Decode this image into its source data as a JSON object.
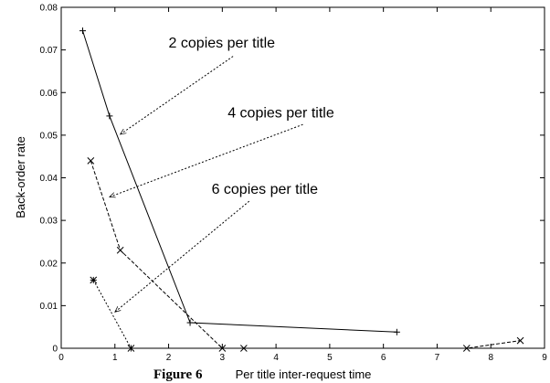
{
  "chart_data": {
    "type": "line",
    "title": "",
    "xlabel": "Per title inter-request time",
    "ylabel": "Back-order rate",
    "xlim": [
      0,
      9
    ],
    "ylim": [
      0,
      0.08
    ],
    "xticks": [
      "0",
      "1",
      "2",
      "3",
      "4",
      "5",
      "6",
      "7",
      "8",
      "9"
    ],
    "yticks": [
      "0",
      "0.01",
      "0.02",
      "0.03",
      "0.04",
      "0.05",
      "0.06",
      "0.07",
      "0.08"
    ],
    "grid": false,
    "legend": "none",
    "series": [
      {
        "marker": "plus",
        "line_style": "solid",
        "points": [
          [
            0.4,
            0.0745
          ],
          [
            0.9,
            0.0545
          ],
          [
            2.4,
            0.006
          ],
          [
            6.25,
            0.0038
          ]
        ]
      },
      {
        "marker": "cross",
        "line_style": "dashed",
        "points": [
          [
            0.55,
            0.044
          ],
          [
            1.1,
            0.023
          ],
          [
            3.0,
            0.0
          ],
          [
            3.4,
            0.0
          ],
          [
            7.55,
            0.0
          ],
          [
            8.55,
            0.0018
          ]
        ]
      },
      {
        "marker": "star",
        "line_style": "dotted",
        "points": [
          [
            0.6,
            0.016
          ],
          [
            1.3,
            0.0
          ]
        ]
      }
    ],
    "annotations": [
      {
        "text": "2 copies per title",
        "text_at": [
          2.0,
          0.0706
        ],
        "arrow_from": [
          3.2,
          0.0685
        ],
        "arrow_to": [
          1.1,
          0.0502
        ]
      },
      {
        "text": "4 copies per title",
        "text_at": [
          3.1,
          0.0542
        ],
        "arrow_from": [
          4.5,
          0.0525
        ],
        "arrow_to": [
          0.9,
          0.0355
        ]
      },
      {
        "text": "6 copies per title",
        "text_at": [
          2.8,
          0.0362
        ],
        "arrow_from": [
          3.5,
          0.0345
        ],
        "arrow_to": [
          1.0,
          0.0085
        ]
      }
    ]
  },
  "caption": "Figure 6"
}
